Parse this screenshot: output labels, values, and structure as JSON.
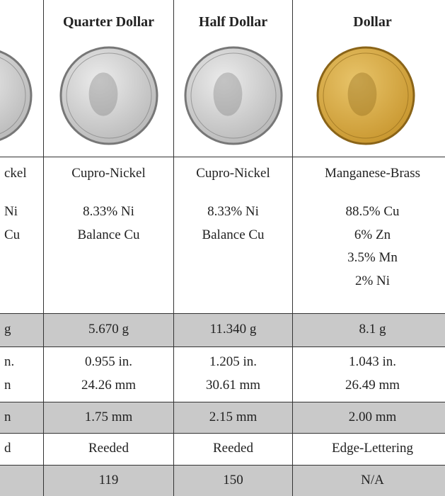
{
  "table": {
    "headers": [
      "Quarter Dollar",
      "Half Dollar",
      "Dollar"
    ],
    "material": {
      "cut": {
        "name": "ckel",
        "composition": [
          "Ni",
          "Cu"
        ]
      },
      "cells": [
        {
          "name": "Cupro-Nickel",
          "composition": [
            "8.33% Ni",
            "Balance Cu"
          ]
        },
        {
          "name": "Cupro-Nickel",
          "composition": [
            "8.33% Ni",
            "Balance Cu"
          ]
        },
        {
          "name": "Manganese-Brass",
          "composition": [
            "88.5% Cu",
            "6% Zn",
            "3.5% Mn",
            "2% Ni"
          ]
        }
      ]
    },
    "rows": [
      {
        "cut": [
          "g"
        ],
        "cells": [
          [
            "5.670 g"
          ],
          [
            "11.340 g"
          ],
          [
            "8.1 g"
          ]
        ]
      },
      {
        "cut": [
          "n.",
          "n"
        ],
        "cells": [
          [
            "0.955 in.",
            "24.26 mm"
          ],
          [
            "1.205 in.",
            "30.61 mm"
          ],
          [
            "1.043 in.",
            "26.49 mm"
          ]
        ]
      },
      {
        "cut": [
          "n"
        ],
        "cells": [
          [
            "1.75 mm"
          ],
          [
            "2.15 mm"
          ],
          [
            "2.00 mm"
          ]
        ]
      },
      {
        "cut": [
          "d"
        ],
        "cells": [
          [
            "Reeded"
          ],
          [
            "Reeded"
          ],
          [
            "Edge-Lettering"
          ]
        ]
      },
      {
        "cut": [],
        "cells": [
          [
            "119"
          ],
          [
            "150"
          ],
          [
            "N/A"
          ]
        ]
      }
    ]
  }
}
